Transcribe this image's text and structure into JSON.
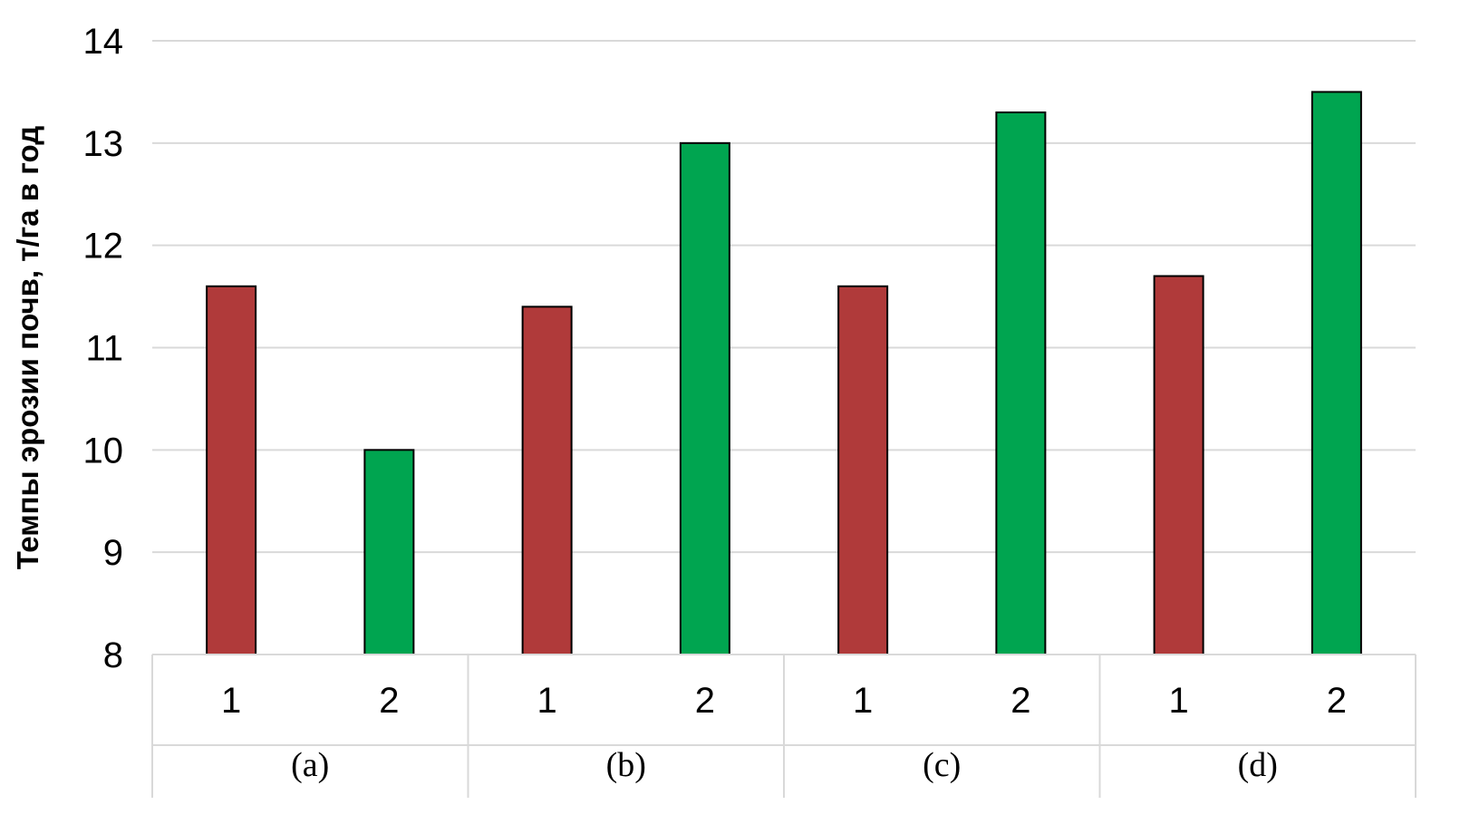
{
  "chart_data": {
    "type": "bar",
    "title": "",
    "ylabel": "Темпы эрозии почв, т/га в год",
    "xlabel": "",
    "ylim": [
      8,
      14
    ],
    "yticks": [
      8,
      9,
      10,
      11,
      12,
      13,
      14
    ],
    "grid": true,
    "groups": [
      {
        "label": "(a)",
        "bars": [
          {
            "category": "1",
            "value": 11.6,
            "color": "#b03a3a"
          },
          {
            "category": "2",
            "value": 10.0,
            "color": "#00a550"
          }
        ]
      },
      {
        "label": "(b)",
        "bars": [
          {
            "category": "1",
            "value": 11.4,
            "color": "#b03a3a"
          },
          {
            "category": "2",
            "value": 13.0,
            "color": "#00a550"
          }
        ]
      },
      {
        "label": "(c)",
        "bars": [
          {
            "category": "1",
            "value": 11.6,
            "color": "#b03a3a"
          },
          {
            "category": "2",
            "value": 13.3,
            "color": "#00a550"
          }
        ]
      },
      {
        "label": "(d)",
        "bars": [
          {
            "category": "1",
            "value": 11.7,
            "color": "#b03a3a"
          },
          {
            "category": "2",
            "value": 13.5,
            "color": "#00a550"
          }
        ]
      }
    ]
  }
}
